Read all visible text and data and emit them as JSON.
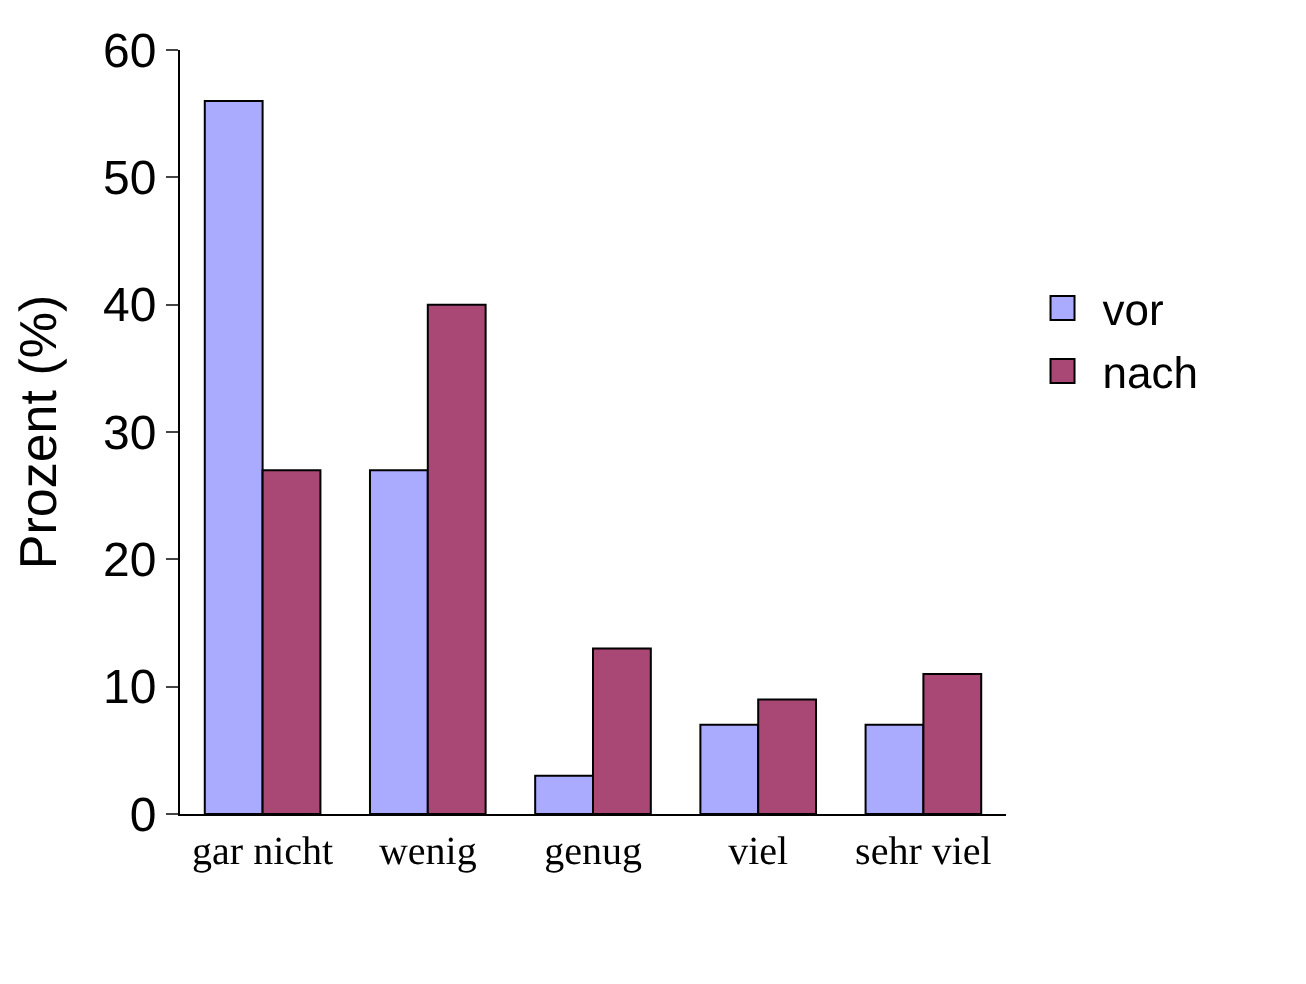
{
  "chart_data": {
    "type": "bar",
    "ylabel": "Prozent (%)",
    "categories": [
      "gar nicht",
      "wenig",
      "genug",
      "viel",
      "sehr viel"
    ],
    "series": [
      {
        "name": "vor",
        "color": "#aaaaff",
        "values": [
          56,
          27,
          3,
          7,
          7
        ]
      },
      {
        "name": "nach",
        "color": "#a94775",
        "values": [
          27,
          40,
          13,
          9,
          11
        ]
      }
    ],
    "ylim": [
      0,
      60
    ],
    "yticks": [
      0,
      10,
      20,
      30,
      40,
      50,
      60
    ],
    "legend": "right"
  }
}
